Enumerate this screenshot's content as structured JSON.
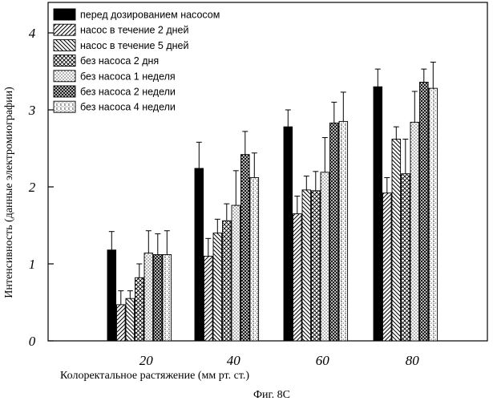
{
  "chart_data": {
    "type": "bar",
    "title": "",
    "caption": "Фиг. 8С",
    "xlabel": "Колоректальное растяжение (мм рт. ст.)",
    "ylabel": "Интенсивность (данные электромиографии)",
    "ylim": [
      0,
      4.5
    ],
    "yticks": [
      {
        "value": 0,
        "label": "0"
      },
      {
        "value": 1,
        "label": "1"
      },
      {
        "value": 2,
        "label": "2"
      },
      {
        "value": 3,
        "label": "3"
      },
      {
        "value": 4,
        "label": "4"
      }
    ],
    "categories": [
      "20",
      "40",
      "60",
      "80"
    ],
    "legend_position": "top-left",
    "series": [
      {
        "name": "перед дозированием насосом",
        "pattern": "solid",
        "values": [
          1.18,
          2.24,
          2.78,
          3.3
        ],
        "errors": [
          0.24,
          0.34,
          0.22,
          0.23
        ]
      },
      {
        "name": "насос в течение 2 дней",
        "pattern": "diag-right",
        "values": [
          0.47,
          1.1,
          1.65,
          1.92
        ],
        "errors": [
          0.18,
          0.23,
          0.23,
          0.2
        ]
      },
      {
        "name": "насос в течение 5 дней",
        "pattern": "diag-left",
        "values": [
          0.55,
          1.4,
          1.96,
          2.62
        ],
        "errors": [
          0.1,
          0.18,
          0.18,
          0.16
        ]
      },
      {
        "name": "без насоса 2 дня",
        "pattern": "crosshatch",
        "values": [
          0.82,
          1.56,
          1.95,
          2.17
        ],
        "errors": [
          0.18,
          0.22,
          0.25,
          0.45
        ]
      },
      {
        "name": "без насоса 1 неделя",
        "pattern": "dots",
        "values": [
          1.14,
          1.76,
          2.19,
          2.84
        ],
        "errors": [
          0.29,
          0.45,
          0.45,
          0.4
        ]
      },
      {
        "name": "без насоса 2 недели",
        "pattern": "dense-cross",
        "values": [
          1.12,
          2.42,
          2.83,
          3.36
        ],
        "errors": [
          0.27,
          0.3,
          0.27,
          0.17
        ]
      },
      {
        "name": "без насоса 4 недели",
        "pattern": "light-dots",
        "values": [
          1.12,
          2.12,
          2.85,
          3.28
        ],
        "errors": [
          0.31,
          0.32,
          0.38,
          0.34
        ]
      }
    ]
  }
}
